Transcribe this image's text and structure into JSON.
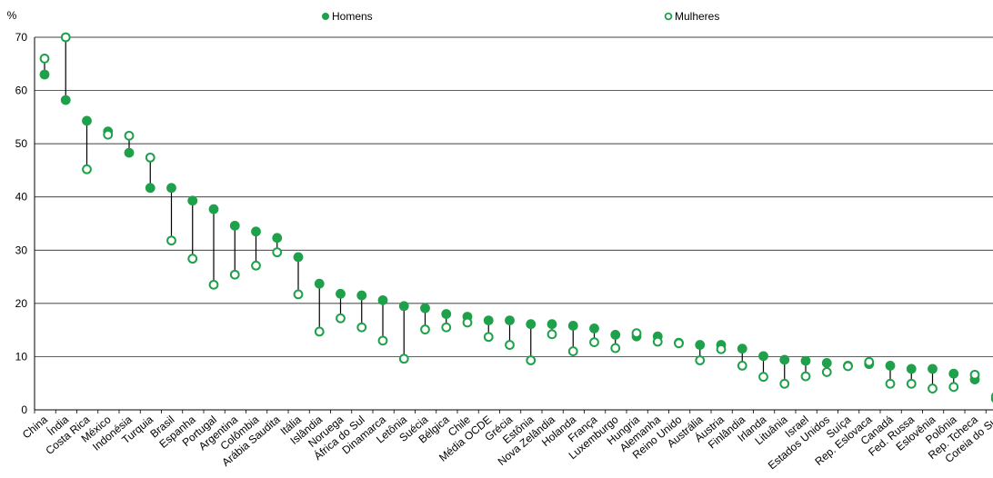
{
  "chart_data": {
    "type": "scatter",
    "ylabel": "%",
    "ylim": [
      0,
      70
    ],
    "yticks": [
      0,
      10,
      20,
      30,
      40,
      50,
      60,
      70
    ],
    "grid": true,
    "legend_position": "top",
    "colors": {
      "homens": "#1fa04a",
      "mulheres": "#1fa04a",
      "connector": "#000000",
      "grid": "#000000"
    },
    "categories": [
      "China",
      "Índia",
      "Costa Rica",
      "México",
      "Indonésia",
      "Turquia",
      "Brasil",
      "Espanha",
      "Portugal",
      "Argentina",
      "Colômbia",
      "Arábia Saudita",
      "Itália",
      "Islândia",
      "Noruega",
      "África do Sul",
      "Dinamarca",
      "Letônia",
      "Suécia",
      "Bélgica",
      "Chile",
      "Média OCDE",
      "Grécia",
      "Estônia",
      "Nova Zelândia",
      "Holanda",
      "França",
      "Luxemburgo",
      "Hungria",
      "Alemanha",
      "Reino Unido",
      "Austrália",
      "Áustria",
      "Finlândia",
      "Irlanda",
      "Lituânia",
      "Israel",
      "Estados Unidos",
      "Suíça",
      "Rep. Eslovaca",
      "Canadá",
      "Fed. Russa",
      "Eslovênia",
      "Polônia",
      "Rep. Tcheca",
      "Coreia do Sul"
    ],
    "series": [
      {
        "name": "Homens",
        "marker": "filled",
        "values": [
          63,
          58.2,
          54.3,
          52.3,
          48.3,
          41.7,
          41.7,
          39.3,
          37.7,
          34.6,
          33.5,
          32.3,
          28.7,
          23.7,
          21.8,
          21.5,
          20.6,
          19.5,
          19.1,
          18,
          17.5,
          16.8,
          16.8,
          16.1,
          16.1,
          15.8,
          15.3,
          14.1,
          13.8,
          13.8,
          12.6,
          12.2,
          12.2,
          11.5,
          10.1,
          9.4,
          9.2,
          8.8,
          8.3,
          8.6,
          8.3,
          7.7,
          7.7,
          6.8,
          5.7,
          2.1
        ]
      },
      {
        "name": "Mulheres",
        "marker": "hollow",
        "values": [
          66,
          70,
          45.2,
          51.7,
          51.5,
          47.4,
          31.8,
          28.4,
          23.5,
          25.4,
          27.1,
          29.6,
          21.7,
          14.7,
          17.2,
          15.5,
          13,
          9.6,
          15.1,
          15.5,
          16.4,
          13.7,
          12.2,
          9.3,
          14.2,
          11,
          12.7,
          11.6,
          14.4,
          12.8,
          12.5,
          9.3,
          11.4,
          8.3,
          6.2,
          4.9,
          6.3,
          7.1,
          8.2,
          9,
          4.9,
          4.9,
          4,
          4.3,
          6.6,
          2.5
        ]
      }
    ]
  }
}
